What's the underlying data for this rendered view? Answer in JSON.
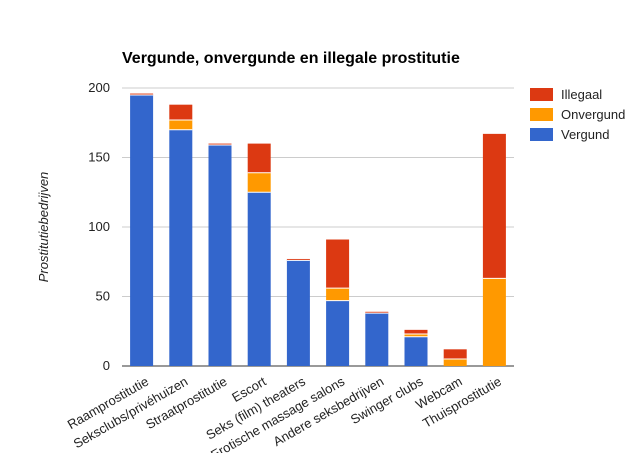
{
  "chart_data": {
    "type": "bar",
    "stacked": true,
    "title": "Vergunde, onvergunde en illegale prostitutie",
    "xlabel": "",
    "ylabel": "Prostitutiebedrijven",
    "ylim": [
      0,
      200
    ],
    "yticks": [
      0,
      50,
      100,
      150,
      200
    ],
    "grid": true,
    "legend_position": "right",
    "categories": [
      "Raamprostitutie",
      "Seksclubs/privéhuizen",
      "Straatprostitutie",
      "Escort",
      "Seks (film) theaters",
      "Erotische massage salons",
      "Andere seksbedrijven",
      "Swinger clubs",
      "Webcam",
      "Thuisprostitutie"
    ],
    "series": [
      {
        "name": "Vergund",
        "color": "#3366cc",
        "values": [
          195,
          170,
          159,
          125,
          76,
          47,
          38,
          21,
          0,
          0
        ]
      },
      {
        "name": "Onvergund",
        "color": "#ff9900",
        "values": [
          0,
          7,
          0,
          14,
          0,
          9,
          0,
          2,
          5,
          63
        ]
      },
      {
        "name": "Illegaal",
        "color": "#dc3912",
        "values": [
          1,
          11,
          1,
          21,
          1,
          35,
          1,
          3,
          7,
          104
        ]
      }
    ]
  }
}
